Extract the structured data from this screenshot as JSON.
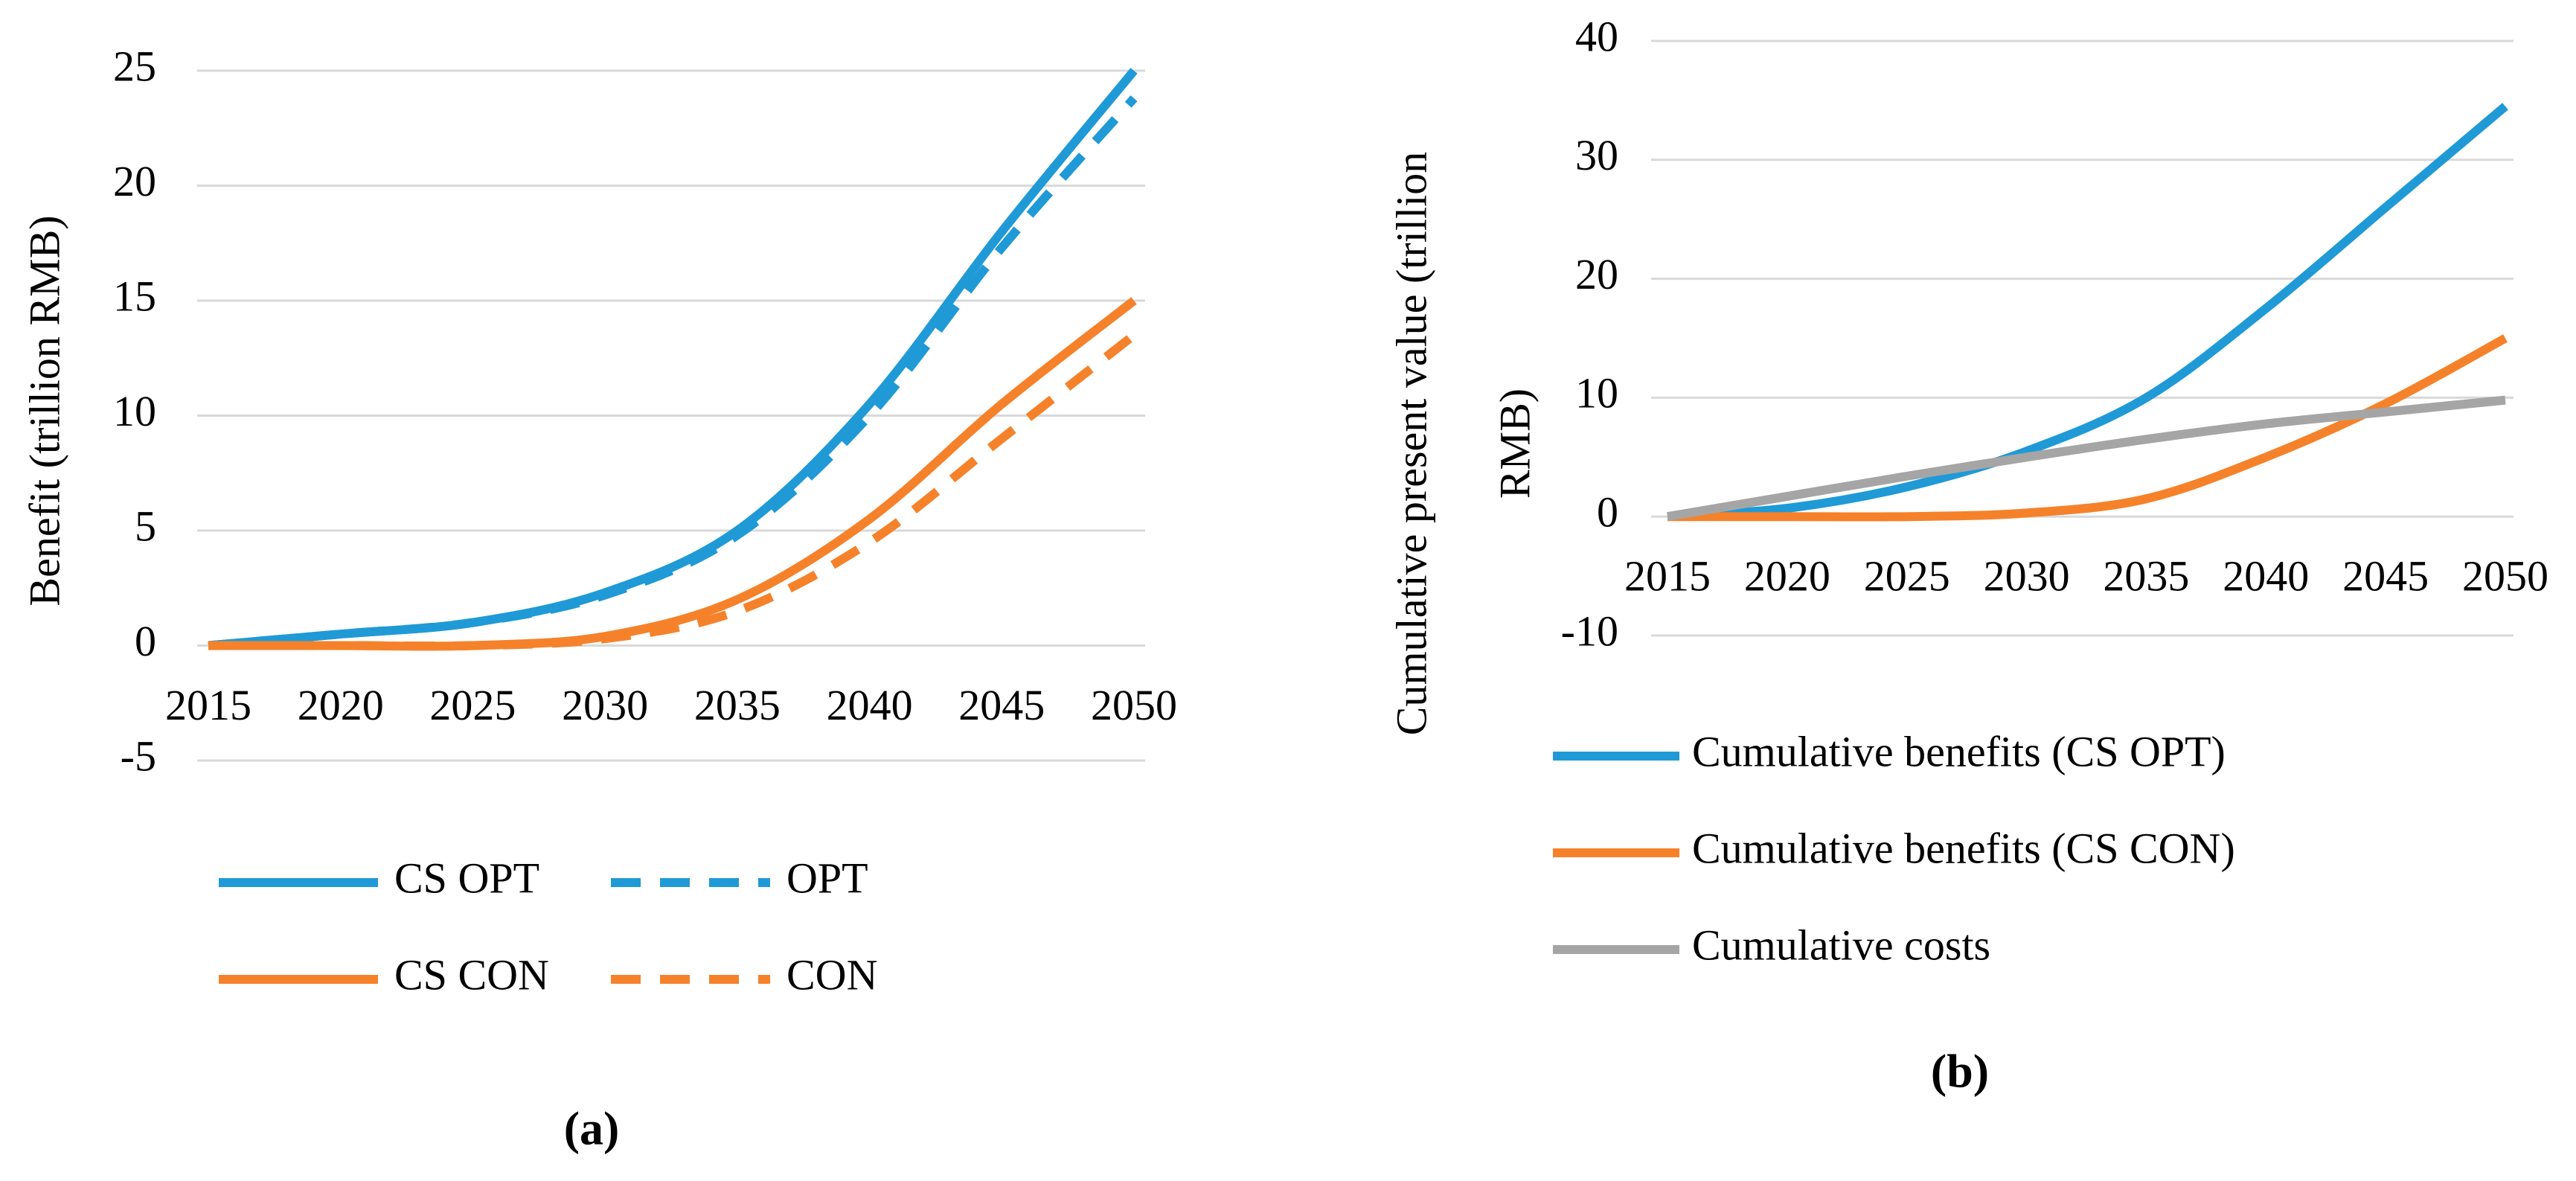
{
  "chart_data": [
    {
      "type": "line",
      "caption": "(a)",
      "ylabel": [
        "Benefit (trillion RMB)"
      ],
      "x": [
        2015,
        2020,
        2025,
        2030,
        2035,
        2040,
        2045,
        2050
      ],
      "xticks": [
        2015,
        2020,
        2025,
        2030,
        2035,
        2040,
        2045,
        2050
      ],
      "xlim": [
        2015,
        2050
      ],
      "ylim": [
        -5,
        25
      ],
      "yticks": [
        -5,
        0,
        5,
        10,
        15,
        20,
        25
      ],
      "grid": true,
      "legend": "bottom",
      "series": [
        {
          "name": "CS OPT",
          "color": "#1f9ad6",
          "line_style": "solid",
          "values": [
            0,
            0.5,
            1.0,
            2.3,
            5.0,
            10.5,
            18.0,
            25
          ]
        },
        {
          "name": "OPT",
          "color": "#1f9ad6",
          "line_style": "dashed",
          "values": [
            0,
            0.5,
            1.0,
            2.2,
            4.8,
            10.0,
            17.3,
            23.8
          ]
        },
        {
          "name": "CS CON",
          "color": "#f5822a",
          "line_style": "solid",
          "values": [
            0,
            0,
            0,
            0.4,
            2.0,
            5.5,
            10.5,
            15
          ]
        },
        {
          "name": "CON",
          "color": "#f5822a",
          "line_style": "dashed",
          "values": [
            0,
            0,
            0,
            0.3,
            1.5,
            4.5,
            9.0,
            13.5
          ]
        }
      ]
    },
    {
      "type": "line",
      "caption": "(b)",
      "ylabel": [
        "Cumulative present value (trillion",
        "RMB)"
      ],
      "x": [
        2015,
        2020,
        2025,
        2030,
        2035,
        2040,
        2045,
        2050
      ],
      "xticks": [
        2015,
        2020,
        2025,
        2030,
        2035,
        2040,
        2045,
        2050
      ],
      "xlim": [
        2015,
        2050
      ],
      "ylim": [
        -10,
        40
      ],
      "yticks": [
        -10,
        0,
        10,
        20,
        30,
        40
      ],
      "grid": true,
      "legend": "bottom",
      "series": [
        {
          "name": "Cumulative benefits (CS OPT)",
          "color": "#1f9ad6",
          "line_style": "solid",
          "values": [
            0,
            0.7,
            2.5,
            5.5,
            10.0,
            17.5,
            26.0,
            34.5
          ]
        },
        {
          "name": "Cumulative benefits (CS CON)",
          "color": "#f5822a",
          "line_style": "solid",
          "values": [
            0,
            0,
            0,
            0.3,
            1.5,
            5.0,
            9.5,
            15.0
          ]
        },
        {
          "name": "Cumulative costs",
          "color": "#a5a5a5",
          "line_style": "solid",
          "values": [
            0,
            1.7,
            3.4,
            5.0,
            6.5,
            7.8,
            8.8,
            9.8
          ]
        }
      ]
    }
  ]
}
